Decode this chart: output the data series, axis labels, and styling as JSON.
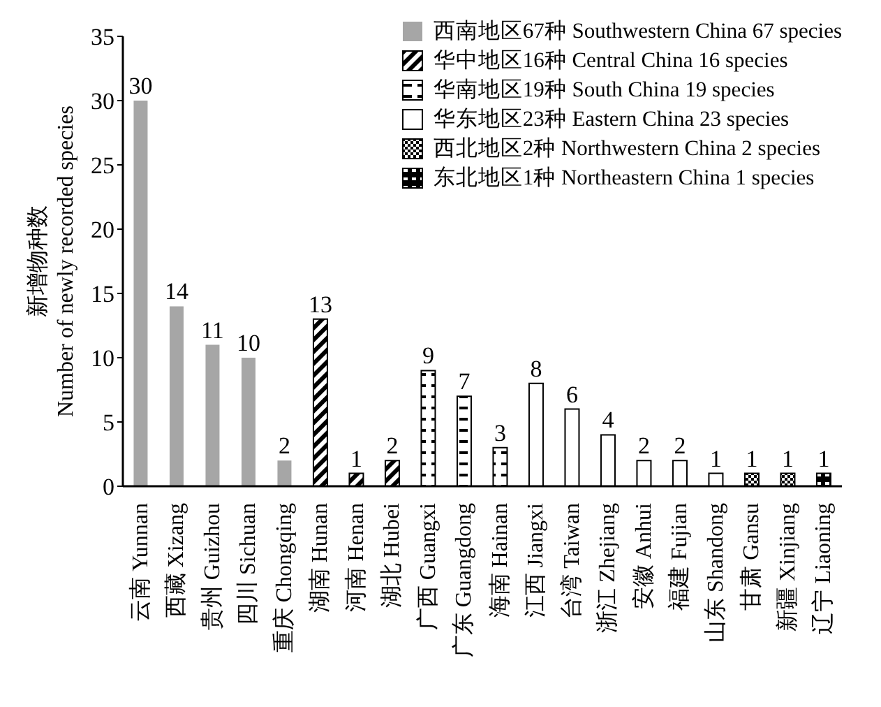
{
  "chart_data": {
    "type": "bar",
    "stacked": true,
    "ylabel": "新增物种数\nNumber of newly recorded species",
    "categories": [
      "云南 Yunnan",
      "西藏 Xizang",
      "贵州 Guizhou",
      "四川 Sichuan",
      "重庆 Chongqing",
      "湖南 Hunan",
      "河南 Henan",
      "湖北 Hubei",
      "广西 Guangxi",
      "广东 Guangdong",
      "海南 Hainan",
      "江西 Jiangxi",
      "台湾 Taiwan",
      "浙江 Zhejiang",
      "安徽 Anhui",
      "福建 Fujian",
      "山东 Shandong",
      "甘肃 Gansu",
      "新疆 Xinjiang",
      "辽宁 Liaoning"
    ],
    "series": [
      {
        "name": "西南地区67种 Southwestern China 67 species",
        "color": "#a6a6a6",
        "values": [
          30,
          14,
          11,
          10,
          2,
          null,
          null,
          null,
          null,
          null,
          null,
          null,
          null,
          null,
          null,
          null,
          null,
          null,
          null,
          null
        ]
      },
      {
        "name": "华中地区16种 Central China 16 species",
        "color": "#000000",
        "values": [
          null,
          null,
          null,
          null,
          null,
          13,
          1,
          2,
          null,
          null,
          null,
          null,
          null,
          null,
          null,
          null,
          null,
          null,
          null,
          null
        ]
      },
      {
        "name": "华南地区19种 South China 19 species",
        "color": "#000000",
        "values": [
          null,
          null,
          null,
          null,
          null,
          null,
          null,
          null,
          9,
          7,
          3,
          null,
          null,
          null,
          null,
          null,
          null,
          null,
          null,
          null
        ]
      },
      {
        "name": "华东地区23种 Eastern China 23 species",
        "color": "#ffffff",
        "values": [
          null,
          null,
          null,
          null,
          null,
          null,
          null,
          null,
          null,
          null,
          null,
          8,
          6,
          4,
          2,
          2,
          1,
          null,
          null,
          null
        ]
      },
      {
        "name": "西北地区2种 Northwestern China 2 species",
        "color": "#000000",
        "values": [
          null,
          null,
          null,
          null,
          null,
          null,
          null,
          null,
          null,
          null,
          null,
          null,
          null,
          null,
          null,
          null,
          null,
          1,
          1,
          null
        ]
      },
      {
        "name": "东北地区1种 Northeastern China 1 species",
        "color": "#000000",
        "values": [
          null,
          null,
          null,
          null,
          null,
          null,
          null,
          null,
          null,
          null,
          null,
          null,
          null,
          null,
          null,
          null,
          null,
          null,
          null,
          1
        ]
      }
    ],
    "ylim": [
      0,
      35
    ],
    "yticks": [
      0,
      5,
      10,
      15,
      20,
      25,
      30,
      35
    ],
    "grid": false,
    "legend": "top right",
    "data_labels": true
  }
}
